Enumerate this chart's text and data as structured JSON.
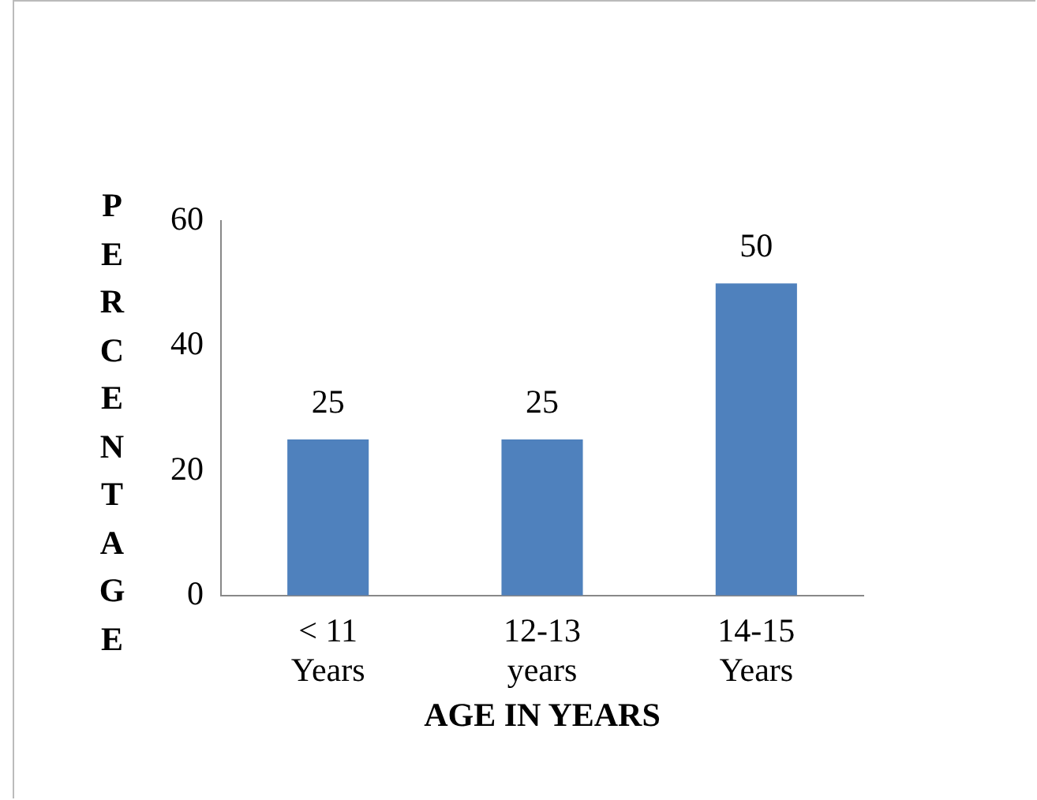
{
  "chart_data": {
    "type": "bar",
    "categories": [
      "< 11 Years",
      "12-13 years",
      "14-15 Years"
    ],
    "values": [
      25,
      25,
      50
    ],
    "color": "#4f81bd",
    "ylim": [
      0,
      60
    ],
    "yticks": [
      0,
      20,
      40,
      60
    ],
    "xlabel": "AGE IN YEARS",
    "ylabel": "PERCENTAGE",
    "data_labels": true,
    "grid": false,
    "legend": false
  }
}
